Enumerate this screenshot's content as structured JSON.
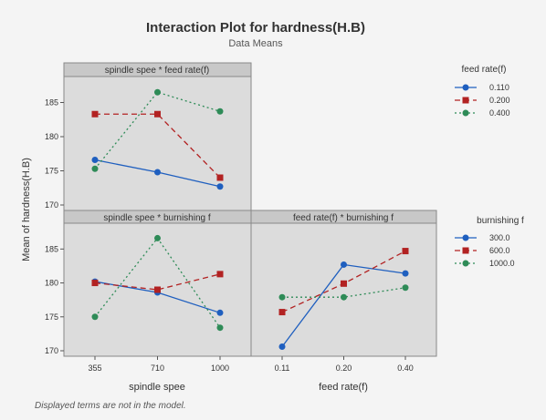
{
  "figure": {
    "title": "Interaction Plot for hardness(H.B)",
    "subtitle": "Data Means",
    "ylabel": "Mean of hardness(H.B)",
    "footnote": "Displayed terms are not in the model."
  },
  "colors": {
    "low": "#1f5fbf",
    "mid": "#b22222",
    "high": "#2e8b57",
    "panel_bg": "#dcdcdc",
    "header_bg": "#c8c8c8"
  },
  "chart_data": [
    {
      "type": "line",
      "panel": "spindle spee * feed rate(f)",
      "xlabel": "",
      "x": [
        "355",
        "710",
        "1000"
      ],
      "ylim": [
        170,
        188
      ],
      "yticks": [
        170,
        175,
        180,
        185
      ],
      "series": [
        {
          "name": "0.110",
          "values": [
            176.6,
            174.8,
            172.7
          ]
        },
        {
          "name": "0.200",
          "values": [
            183.3,
            183.3,
            174.0
          ]
        },
        {
          "name": "0.400",
          "values": [
            175.3,
            186.5,
            183.7
          ]
        }
      ]
    },
    {
      "type": "line",
      "panel": "spindle spee * burnishing f",
      "xlabel": "spindle spee",
      "x": [
        "355",
        "710",
        "1000"
      ],
      "ylim": [
        170,
        188
      ],
      "yticks": [
        170,
        175,
        180,
        185
      ],
      "series": [
        {
          "name": "300.0",
          "values": [
            180.2,
            178.6,
            175.6
          ]
        },
        {
          "name": "600.0",
          "values": [
            180.0,
            179.0,
            181.3
          ]
        },
        {
          "name": "1000.0",
          "values": [
            175.0,
            186.6,
            173.4
          ]
        }
      ]
    },
    {
      "type": "line",
      "panel": "feed rate(f) * burnishing f",
      "xlabel": "feed rate(f)",
      "x": [
        "0.11",
        "0.20",
        "0.40"
      ],
      "ylim": [
        170,
        188
      ],
      "yticks": [
        170,
        175,
        180,
        185
      ],
      "series": [
        {
          "name": "300.0",
          "values": [
            170.6,
            182.7,
            181.4
          ]
        },
        {
          "name": "600.0",
          "values": [
            175.7,
            179.9,
            184.7
          ]
        },
        {
          "name": "1000.0",
          "values": [
            177.9,
            177.9,
            179.3
          ]
        }
      ]
    }
  ],
  "legends": [
    {
      "title": "feed rate(f)",
      "items": [
        "0.110",
        "0.200",
        "0.400"
      ]
    },
    {
      "title": "burnishing f",
      "items": [
        "300.0",
        "600.0",
        "1000.0"
      ]
    }
  ]
}
